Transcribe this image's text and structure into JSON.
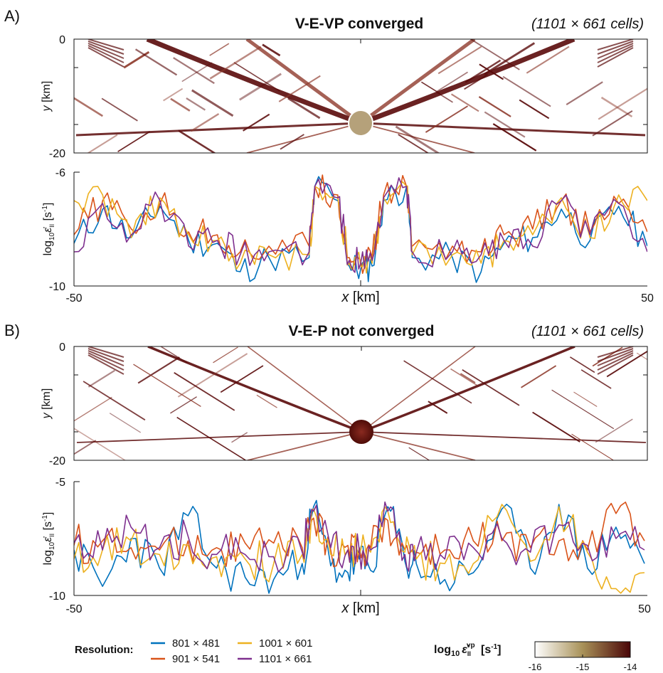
{
  "colors": {
    "strain_dark": "#5a0a0a",
    "strain_mid": "#8e3a2c",
    "inclusion_A": "#b5a17a",
    "inclusion_B": "#6a1a14",
    "cmap_low": "#ffffff",
    "cmap_mid": "#a89158",
    "cmap_high": "#4a0608"
  },
  "panelA": {
    "letter": "A)",
    "title": "V-E-VP converged",
    "cells": "(1101 × 661 cells)",
    "map": {
      "ylabel": "y",
      "yunit": " [km]",
      "yticks": [
        "0",
        "-20"
      ]
    }
  },
  "panelB": {
    "letter": "B)",
    "title": "V-E-P not converged",
    "cells": "(1101 × 661 cells)",
    "map": {
      "ylabel": "y",
      "yunit": " [km]",
      "yticks": [
        "0",
        "-20"
      ]
    }
  },
  "axes": {
    "xlabel": "x",
    "xunit": " [km]",
    "xticks": [
      "-50",
      "50"
    ],
    "lineA_yticks": [
      "-6",
      "-10"
    ],
    "lineB_yticks": [
      "-5",
      "-10"
    ],
    "ylabel_log": "log",
    "ylabel_sub": "10",
    "ylabel_eps": "ε̇",
    "ylabel_sub2": "II",
    "ylabel_unit": " [s",
    "ylabel_exp": "-1",
    "ylabel_close": "]"
  },
  "legend": {
    "title": "Resolution:",
    "entries": [
      {
        "label": "801 × 481",
        "color": "#0072BD"
      },
      {
        "label": "901 × 541",
        "color": "#D95319"
      },
      {
        "label": "1001 × 601",
        "color": "#EDB120"
      },
      {
        "label": "1101 × 661",
        "color": "#7E2F8E"
      }
    ]
  },
  "colorbar": {
    "title_log": "log",
    "title_sub": "10",
    "title_eps": "ε̇",
    "title_sub2": "II",
    "title_sup": "vp",
    "title_unit": " [s",
    "title_exp": "-1",
    "title_close": "]",
    "ticks": [
      "-16",
      "-15",
      "-14"
    ]
  },
  "chart_data": [
    {
      "type": "heatmap",
      "panel": "A",
      "title": "V-E-VP converged",
      "xlim": [
        -50,
        50
      ],
      "ylim": [
        -20,
        0
      ],
      "ylabel": "y [km]",
      "colorbar_range": [
        -16,
        -14
      ]
    },
    {
      "type": "line",
      "panel": "A",
      "xlabel": "x [km]",
      "xlim": [
        -50,
        50
      ],
      "ylim": [
        -10,
        -6
      ],
      "x": [
        -50,
        -45,
        -40,
        -35,
        -30,
        -25,
        -21,
        -16,
        -9,
        -8,
        -4,
        -2,
        0,
        2,
        4,
        8,
        9,
        16,
        21,
        25,
        30,
        35,
        40,
        45,
        50
      ],
      "series": [
        {
          "name": "801 × 481",
          "values": [
            -8.5,
            -7.3,
            -8.3,
            -7.2,
            -8.4,
            -8.5,
            -9.5,
            -9.0,
            -9.0,
            -6.5,
            -7.0,
            -9.3,
            -9.4,
            -9.3,
            -7.0,
            -6.5,
            -9.0,
            -9.0,
            -9.5,
            -8.5,
            -8.3,
            -7.3,
            -8.4,
            -7.2,
            -8.6
          ]
        },
        {
          "name": "901 × 541",
          "values": [
            -8.2,
            -7.0,
            -8.0,
            -7.1,
            -8.1,
            -8.2,
            -8.8,
            -8.6,
            -8.6,
            -6.5,
            -6.8,
            -9.0,
            -9.1,
            -9.0,
            -6.8,
            -6.5,
            -8.6,
            -8.6,
            -8.8,
            -8.2,
            -8.0,
            -7.0,
            -8.1,
            -7.1,
            -8.1
          ]
        },
        {
          "name": "1001 × 601",
          "values": [
            -7.0,
            -6.8,
            -8.3,
            -6.9,
            -8.2,
            -8.4,
            -9.2,
            -8.9,
            -8.9,
            -6.5,
            -6.9,
            -9.2,
            -9.3,
            -9.2,
            -6.9,
            -6.5,
            -8.9,
            -8.9,
            -9.2,
            -8.4,
            -8.2,
            -6.9,
            -8.3,
            -6.8,
            -7.0
          ]
        },
        {
          "name": "1101 × 661",
          "values": [
            -8.8,
            -7.1,
            -8.2,
            -7.0,
            -8.6,
            -8.4,
            -8.9,
            -8.8,
            -8.8,
            -6.5,
            -6.9,
            -9.1,
            -9.2,
            -9.1,
            -6.9,
            -6.5,
            -8.8,
            -8.8,
            -8.9,
            -8.4,
            -8.6,
            -7.0,
            -8.2,
            -7.1,
            -8.8
          ]
        }
      ]
    },
    {
      "type": "heatmap",
      "panel": "B",
      "title": "V-E-P not converged",
      "xlim": [
        -50,
        50
      ],
      "ylim": [
        -20,
        0
      ],
      "ylabel": "y [km]",
      "colorbar_range": [
        -16,
        -14
      ]
    },
    {
      "type": "line",
      "panel": "B",
      "xlabel": "x [km]",
      "xlim": [
        -50,
        50
      ],
      "ylim": [
        -10,
        -5
      ],
      "x": [
        -50,
        -45,
        -40,
        -35,
        -30,
        -25,
        -20,
        -15,
        -10,
        -8,
        -5,
        -2,
        0,
        2,
        5,
        8,
        10,
        15,
        20,
        25,
        30,
        35,
        40,
        45,
        50
      ],
      "series": [
        {
          "name": "801 × 481",
          "values": [
            -8.0,
            -9.6,
            -7.5,
            -8.8,
            -6.5,
            -8.8,
            -9.2,
            -9.3,
            -8.6,
            -6.1,
            -8.7,
            -9.0,
            -8.4,
            -8.9,
            -6.1,
            -8.5,
            -8.6,
            -9.3,
            -9.0,
            -6.2,
            -8.8,
            -6.0,
            -8.8,
            -7.0,
            -8.6
          ]
        },
        {
          "name": "901 × 541",
          "values": [
            -7.8,
            -7.6,
            -7.9,
            -8.0,
            -7.6,
            -7.9,
            -7.7,
            -7.7,
            -7.9,
            -6.6,
            -8.0,
            -7.8,
            -7.9,
            -7.9,
            -6.7,
            -8.0,
            -8.1,
            -8.0,
            -7.6,
            -7.6,
            -7.9,
            -7.6,
            -8.0,
            -6.4,
            -7.6
          ]
        },
        {
          "name": "1001 × 601",
          "values": [
            -8.4,
            -8.0,
            -7.6,
            -8.2,
            -7.8,
            -8.3,
            -8.4,
            -8.6,
            -8.2,
            -6.2,
            -8.2,
            -8.0,
            -8.2,
            -8.1,
            -6.3,
            -8.1,
            -8.4,
            -8.6,
            -8.6,
            -6.0,
            -8.5,
            -6.1,
            -8.1,
            -9.7,
            -9.0
          ]
        },
        {
          "name": "1101 × 661",
          "values": [
            -7.7,
            -8.0,
            -7.0,
            -7.9,
            -7.4,
            -8.2,
            -8.2,
            -8.3,
            -8.1,
            -6.3,
            -7.9,
            -8.0,
            -8.0,
            -8.0,
            -6.3,
            -8.2,
            -8.1,
            -8.4,
            -7.9,
            -7.5,
            -8.1,
            -6.9,
            -7.8,
            -7.5,
            -8.0
          ]
        }
      ]
    }
  ]
}
